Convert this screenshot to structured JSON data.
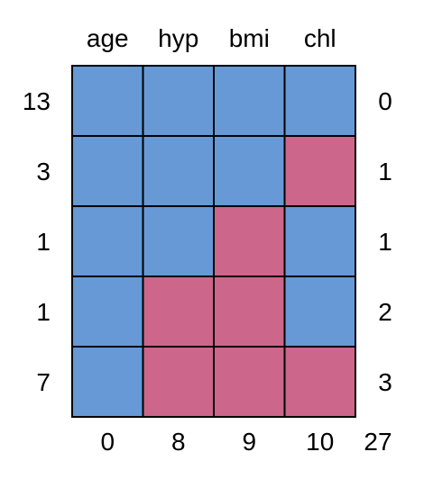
{
  "chart_data": {
    "type": "heatmap",
    "title": "",
    "columns": [
      "age",
      "hyp",
      "bmi",
      "chl"
    ],
    "row_counts": [
      13,
      3,
      1,
      1,
      7
    ],
    "row_missing_counts": [
      0,
      1,
      1,
      2,
      3
    ],
    "column_missing_counts": [
      0,
      8,
      9,
      10
    ],
    "total_missing": 27,
    "pattern": [
      [
        1,
        1,
        1,
        1
      ],
      [
        1,
        1,
        1,
        0
      ],
      [
        1,
        1,
        0,
        1
      ],
      [
        1,
        0,
        0,
        1
      ],
      [
        1,
        0,
        0,
        0
      ]
    ],
    "colors": {
      "observed": "#6699D6",
      "missing": "#CC668A",
      "border": "#000000"
    }
  }
}
